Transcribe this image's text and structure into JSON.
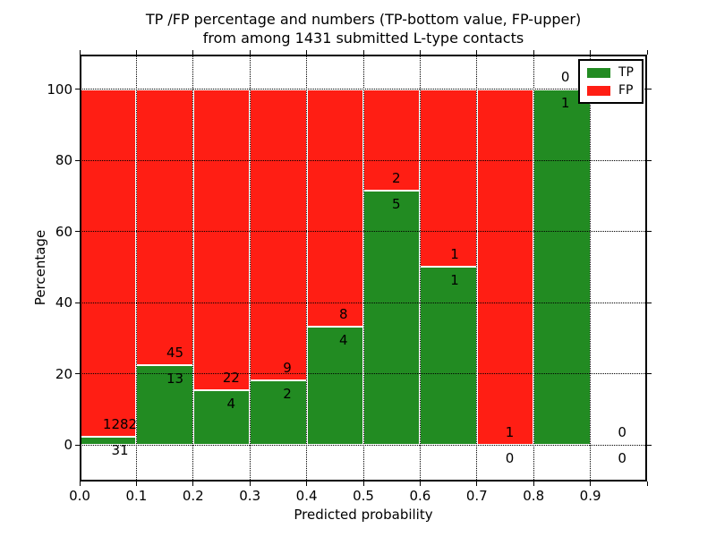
{
  "title": {
    "line1": "TP /FP percentage and numbers (TP-bottom value, FP-upper)",
    "line2": "from among 1431 submitted L-type contacts"
  },
  "axes": {
    "xlabel": "Predicted probability",
    "ylabel": "Percentage",
    "x_tick_labels": [
      "0.0",
      "0.1",
      "0.2",
      "0.3",
      "0.4",
      "0.5",
      "0.6",
      "0.7",
      "0.8",
      "0.9"
    ],
    "y_tick_labels": [
      "0",
      "20",
      "40",
      "60",
      "80",
      "100"
    ]
  },
  "legend": {
    "items": [
      {
        "label": "TP",
        "color": "#228b22"
      },
      {
        "label": "FP",
        "color": "#ff1e14"
      }
    ]
  },
  "chart_data": {
    "type": "bar",
    "stacked": true,
    "normalized_to": 100,
    "title": "TP /FP percentage and numbers (TP-bottom value, FP-upper) from among 1431 submitted L-type contacts",
    "xlabel": "Predicted probability",
    "ylabel": "Percentage",
    "total_contacts": 1431,
    "grid": "dotted",
    "legend_position": "upper right",
    "colors": {
      "tp": "#228b22",
      "fp": "#ff1e14",
      "bar_edge": "#ffffff"
    },
    "xlim": [
      0,
      1
    ],
    "ylim": [
      -10.3,
      109.7
    ],
    "x_ticks": [
      0,
      0.1,
      0.2,
      0.3,
      0.4,
      0.5,
      0.6,
      0.7,
      0.8,
      0.9,
      1.0
    ],
    "y_ticks": [
      0,
      20,
      40,
      60,
      80,
      100
    ],
    "bins": [
      {
        "range": [
          0.0,
          0.1
        ],
        "tp": 31,
        "fp": 1282,
        "tp_pct": 2.4
      },
      {
        "range": [
          0.1,
          0.2
        ],
        "tp": 13,
        "fp": 45,
        "tp_pct": 22.4
      },
      {
        "range": [
          0.2,
          0.3
        ],
        "tp": 4,
        "fp": 22,
        "tp_pct": 15.4
      },
      {
        "range": [
          0.3,
          0.4
        ],
        "tp": 2,
        "fp": 9,
        "tp_pct": 18.2
      },
      {
        "range": [
          0.4,
          0.5
        ],
        "tp": 4,
        "fp": 8,
        "tp_pct": 33.3
      },
      {
        "range": [
          0.5,
          0.6
        ],
        "tp": 5,
        "fp": 2,
        "tp_pct": 71.4
      },
      {
        "range": [
          0.6,
          0.7
        ],
        "tp": 1,
        "fp": 1,
        "tp_pct": 50.0
      },
      {
        "range": [
          0.7,
          0.8
        ],
        "tp": 0,
        "fp": 1,
        "tp_pct": 0.0
      },
      {
        "range": [
          0.8,
          0.9
        ],
        "tp": 1,
        "fp": 0,
        "tp_pct": 100.0
      },
      {
        "range": [
          0.9,
          1.0
        ],
        "tp": 0,
        "fp": 0,
        "tp_pct": null
      }
    ],
    "annotation_x": [
      0.071,
      0.168,
      0.267,
      0.366,
      0.465,
      0.558,
      0.661,
      0.758,
      0.856,
      0.956
    ]
  }
}
